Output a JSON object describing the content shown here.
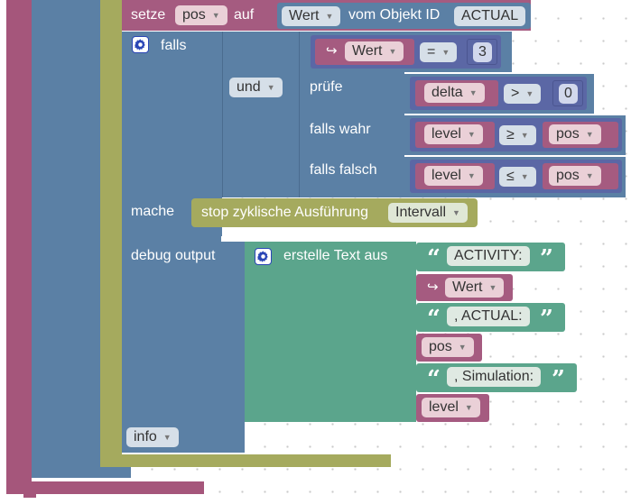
{
  "colors": {
    "outer_pink": "#a5567b",
    "olive": "#a5aa5e",
    "blue": "#5b80a5",
    "compare": "#5b67a5",
    "text_green": "#5ba58c",
    "var_pink": "#a55b80",
    "dropdown_pink": "#ead0d7",
    "dropdown_blue": "#d6dfe8"
  },
  "set_block": {
    "label": "setze",
    "var": "pos",
    "to": "auf",
    "prop": "Wert",
    "from_object": "vom Objekt ID",
    "object_id": "ACTUAL"
  },
  "if_block": {
    "label": "falls",
    "cond_value": "Wert",
    "cond_op": "=",
    "cond_num": "3",
    "logic": "und",
    "check": "prüfe",
    "check_var": "delta",
    "check_op": ">",
    "check_num": "0",
    "if_true": "falls wahr",
    "true_var": "level",
    "true_op": "≥",
    "true_cmp": "pos",
    "if_false": "falls falsch",
    "false_var": "level",
    "false_op": "≤",
    "false_cmp": "pos",
    "do": "mache",
    "stop_label": "stop zyklische Ausführung",
    "stop_target": "Intervall"
  },
  "debug_block": {
    "label": "debug output",
    "join_label": "erstelle Text aus",
    "item1": "ACTIVITY:",
    "item2": "Wert",
    "item3": ", ACTUAL:",
    "item4": "pos",
    "item5": ", Simulation:",
    "item6": "level",
    "level": "info"
  },
  "icons": {
    "gear": "gear-icon",
    "dropdown": "dropdown-arrow-icon",
    "return": "return-arrow-icon",
    "quote_open": "quote-open-icon",
    "quote_close": "quote-close-icon"
  }
}
